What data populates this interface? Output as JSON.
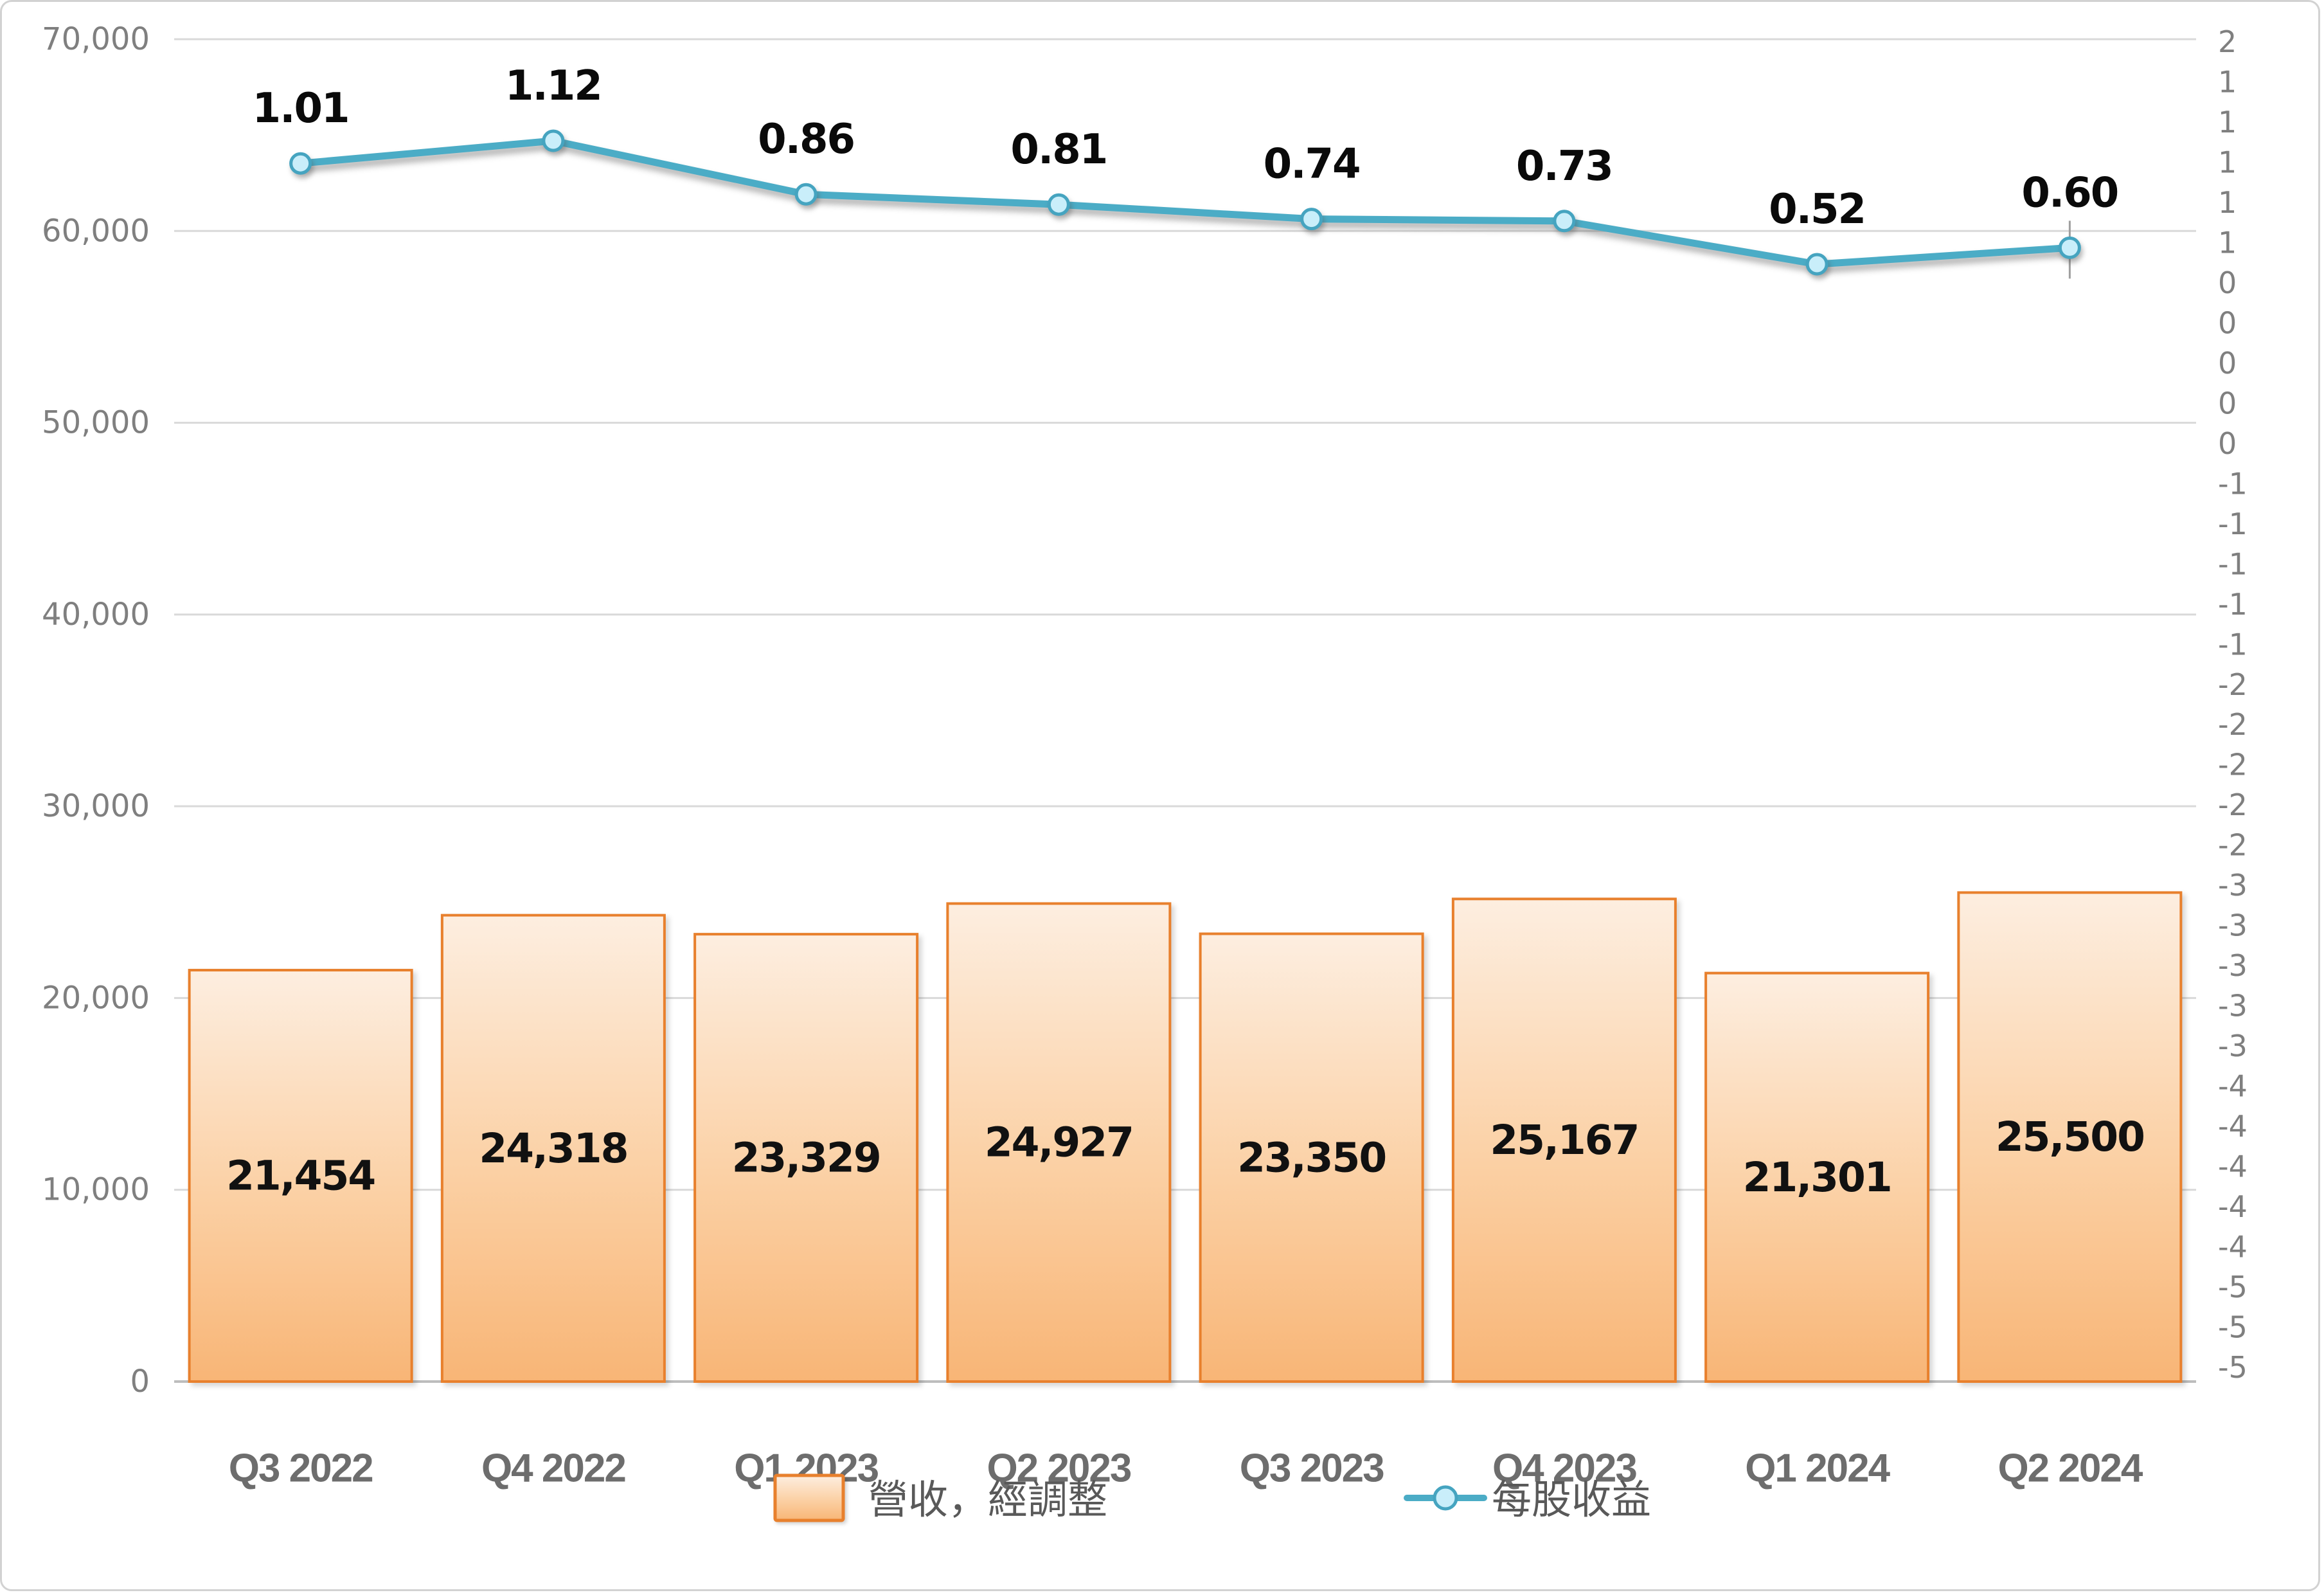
{
  "chart_data": {
    "type": "combo",
    "categories": [
      "Q3 2022",
      "Q4 2022",
      "Q1 2023",
      "Q2 2023",
      "Q3 2023",
      "Q4 2023",
      "Q1 2024",
      "Q2 2024"
    ],
    "series": [
      {
        "name": "營收，經調整",
        "type": "bar",
        "axis": "left",
        "values": [
          21454,
          24318,
          23329,
          24927,
          23350,
          25167,
          21301,
          25500
        ],
        "labels": [
          "21,454",
          "24,318",
          "23,329",
          "24,927",
          "23,350",
          "25,167",
          "21,301",
          "25,500"
        ],
        "border_color": "#e8802d",
        "gradient_top": "#fdeee0",
        "gradient_mid": "#fbd0a4",
        "gradient_bottom": "#f8b576"
      },
      {
        "name": "每股收益",
        "type": "line",
        "axis": "right",
        "values": [
          1.01,
          1.12,
          0.86,
          0.81,
          0.74,
          0.73,
          0.52,
          0.6
        ],
        "labels": [
          "1.01",
          "1.12",
          "0.86",
          "0.81",
          "0.74",
          "0.73",
          "0.52",
          "0.60"
        ],
        "line_color": "#4bacc6",
        "marker_fill": "#c9eefa",
        "marker_stroke": "#45a4c0"
      }
    ],
    "left_axis": {
      "ticks": [
        {
          "label": "0",
          "value": 0
        },
        {
          "label": "10,000",
          "value": 10000
        },
        {
          "label": "20,000",
          "value": 20000
        },
        {
          "label": "30,000",
          "value": 30000
        },
        {
          "label": "40,000",
          "value": 40000
        },
        {
          "label": "50,000",
          "value": 50000
        },
        {
          "label": "60,000",
          "value": 60000
        },
        {
          "label": "70,000",
          "value": 70000
        }
      ],
      "range": [
        0,
        70000
      ]
    },
    "right_axis": {
      "ticks": [
        "2",
        "1",
        "1",
        "1",
        "1",
        "1",
        "0",
        "0",
        "0",
        "0",
        "0",
        "-1",
        "-1",
        "-1",
        "-1",
        "-1",
        "-2",
        "-2",
        "-2",
        "-2",
        "-2",
        "-3",
        "-3",
        "-3",
        "-3",
        "-3",
        "-4",
        "-4",
        "-4",
        "-4",
        "-4",
        "-5",
        "-5",
        "-5"
      ]
    },
    "legend": {
      "items": [
        {
          "label": "營收，經調整",
          "kind": "bar-swatch"
        },
        {
          "label": "每股收益",
          "kind": "line-marker"
        }
      ],
      "position": "bottom-center"
    },
    "grid": true,
    "title": "",
    "xlabel": "",
    "ylabel": ""
  },
  "frame": {
    "background": "#ffffff",
    "border_color": "#d2d2d2",
    "gridline_color": "#d9d9d9",
    "axis_color": "#bdbdbd",
    "tick_label_color": "#7f7f7f",
    "category_label_color": "#6d6d6d",
    "data_label_color": "#0a0a0a"
  }
}
